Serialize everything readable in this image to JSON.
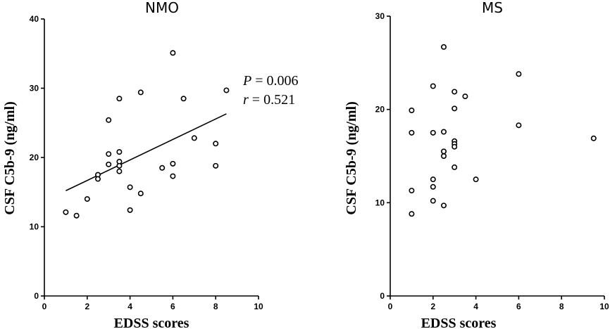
{
  "chart_data": [
    {
      "type": "scatter",
      "title": "NMO",
      "xlabel": "EDSS scores",
      "ylabel": "CSF C5b-9 (ng/ml)",
      "xlim": [
        0,
        10
      ],
      "ylim": [
        0,
        40
      ],
      "xticks": [
        0,
        2,
        4,
        6,
        8,
        10
      ],
      "yticks": [
        0,
        10,
        20,
        30,
        40
      ],
      "points": [
        {
          "x": 1.0,
          "y": 12.1
        },
        {
          "x": 1.5,
          "y": 11.6
        },
        {
          "x": 2.0,
          "y": 14.0
        },
        {
          "x": 2.5,
          "y": 17.5
        },
        {
          "x": 2.5,
          "y": 16.9
        },
        {
          "x": 3.0,
          "y": 25.4
        },
        {
          "x": 3.0,
          "y": 20.5
        },
        {
          "x": 3.0,
          "y": 19.0
        },
        {
          "x": 3.5,
          "y": 28.5
        },
        {
          "x": 3.5,
          "y": 20.8
        },
        {
          "x": 3.5,
          "y": 19.4
        },
        {
          "x": 3.5,
          "y": 18.8
        },
        {
          "x": 3.5,
          "y": 18.0
        },
        {
          "x": 4.0,
          "y": 15.7
        },
        {
          "x": 4.0,
          "y": 12.4
        },
        {
          "x": 4.5,
          "y": 29.4
        },
        {
          "x": 4.5,
          "y": 14.8
        },
        {
          "x": 5.5,
          "y": 18.5
        },
        {
          "x": 6.0,
          "y": 35.1
        },
        {
          "x": 6.0,
          "y": 19.1
        },
        {
          "x": 6.0,
          "y": 17.3
        },
        {
          "x": 6.5,
          "y": 28.5
        },
        {
          "x": 7.0,
          "y": 22.8
        },
        {
          "x": 8.0,
          "y": 22.0
        },
        {
          "x": 8.0,
          "y": 18.8
        },
        {
          "x": 8.5,
          "y": 29.7
        }
      ],
      "fit_line": {
        "x": [
          1.0,
          8.5
        ],
        "y": [
          15.2,
          26.3
        ]
      },
      "annotation": {
        "p_label": "P",
        "p_value": " = 0.006",
        "r_label": "r",
        "r_value": " = 0.521"
      },
      "grid": false
    },
    {
      "type": "scatter",
      "title": "MS",
      "xlabel": "EDSS scores",
      "ylabel": "CSF C5b-9 (ng/ml)",
      "xlim": [
        0,
        10
      ],
      "ylim": [
        0,
        30
      ],
      "xticks": [
        0,
        2,
        4,
        6,
        8,
        10
      ],
      "yticks": [
        0,
        10,
        20,
        30
      ],
      "points": [
        {
          "x": 1.0,
          "y": 19.9
        },
        {
          "x": 1.0,
          "y": 17.5
        },
        {
          "x": 1.0,
          "y": 11.3
        },
        {
          "x": 1.0,
          "y": 8.8
        },
        {
          "x": 2.0,
          "y": 22.5
        },
        {
          "x": 2.0,
          "y": 17.5
        },
        {
          "x": 2.0,
          "y": 12.5
        },
        {
          "x": 2.0,
          "y": 11.7
        },
        {
          "x": 2.0,
          "y": 10.2
        },
        {
          "x": 2.5,
          "y": 26.7
        },
        {
          "x": 2.5,
          "y": 17.6
        },
        {
          "x": 2.5,
          "y": 15.5
        },
        {
          "x": 2.5,
          "y": 15.0
        },
        {
          "x": 2.5,
          "y": 9.7
        },
        {
          "x": 3.0,
          "y": 21.9
        },
        {
          "x": 3.0,
          "y": 20.1
        },
        {
          "x": 3.0,
          "y": 16.6
        },
        {
          "x": 3.0,
          "y": 16.3
        },
        {
          "x": 3.0,
          "y": 16.0
        },
        {
          "x": 3.0,
          "y": 13.8
        },
        {
          "x": 3.5,
          "y": 21.4
        },
        {
          "x": 4.0,
          "y": 12.5
        },
        {
          "x": 6.0,
          "y": 23.8
        },
        {
          "x": 6.0,
          "y": 18.3
        },
        {
          "x": 9.5,
          "y": 16.9
        }
      ],
      "grid": false
    }
  ]
}
